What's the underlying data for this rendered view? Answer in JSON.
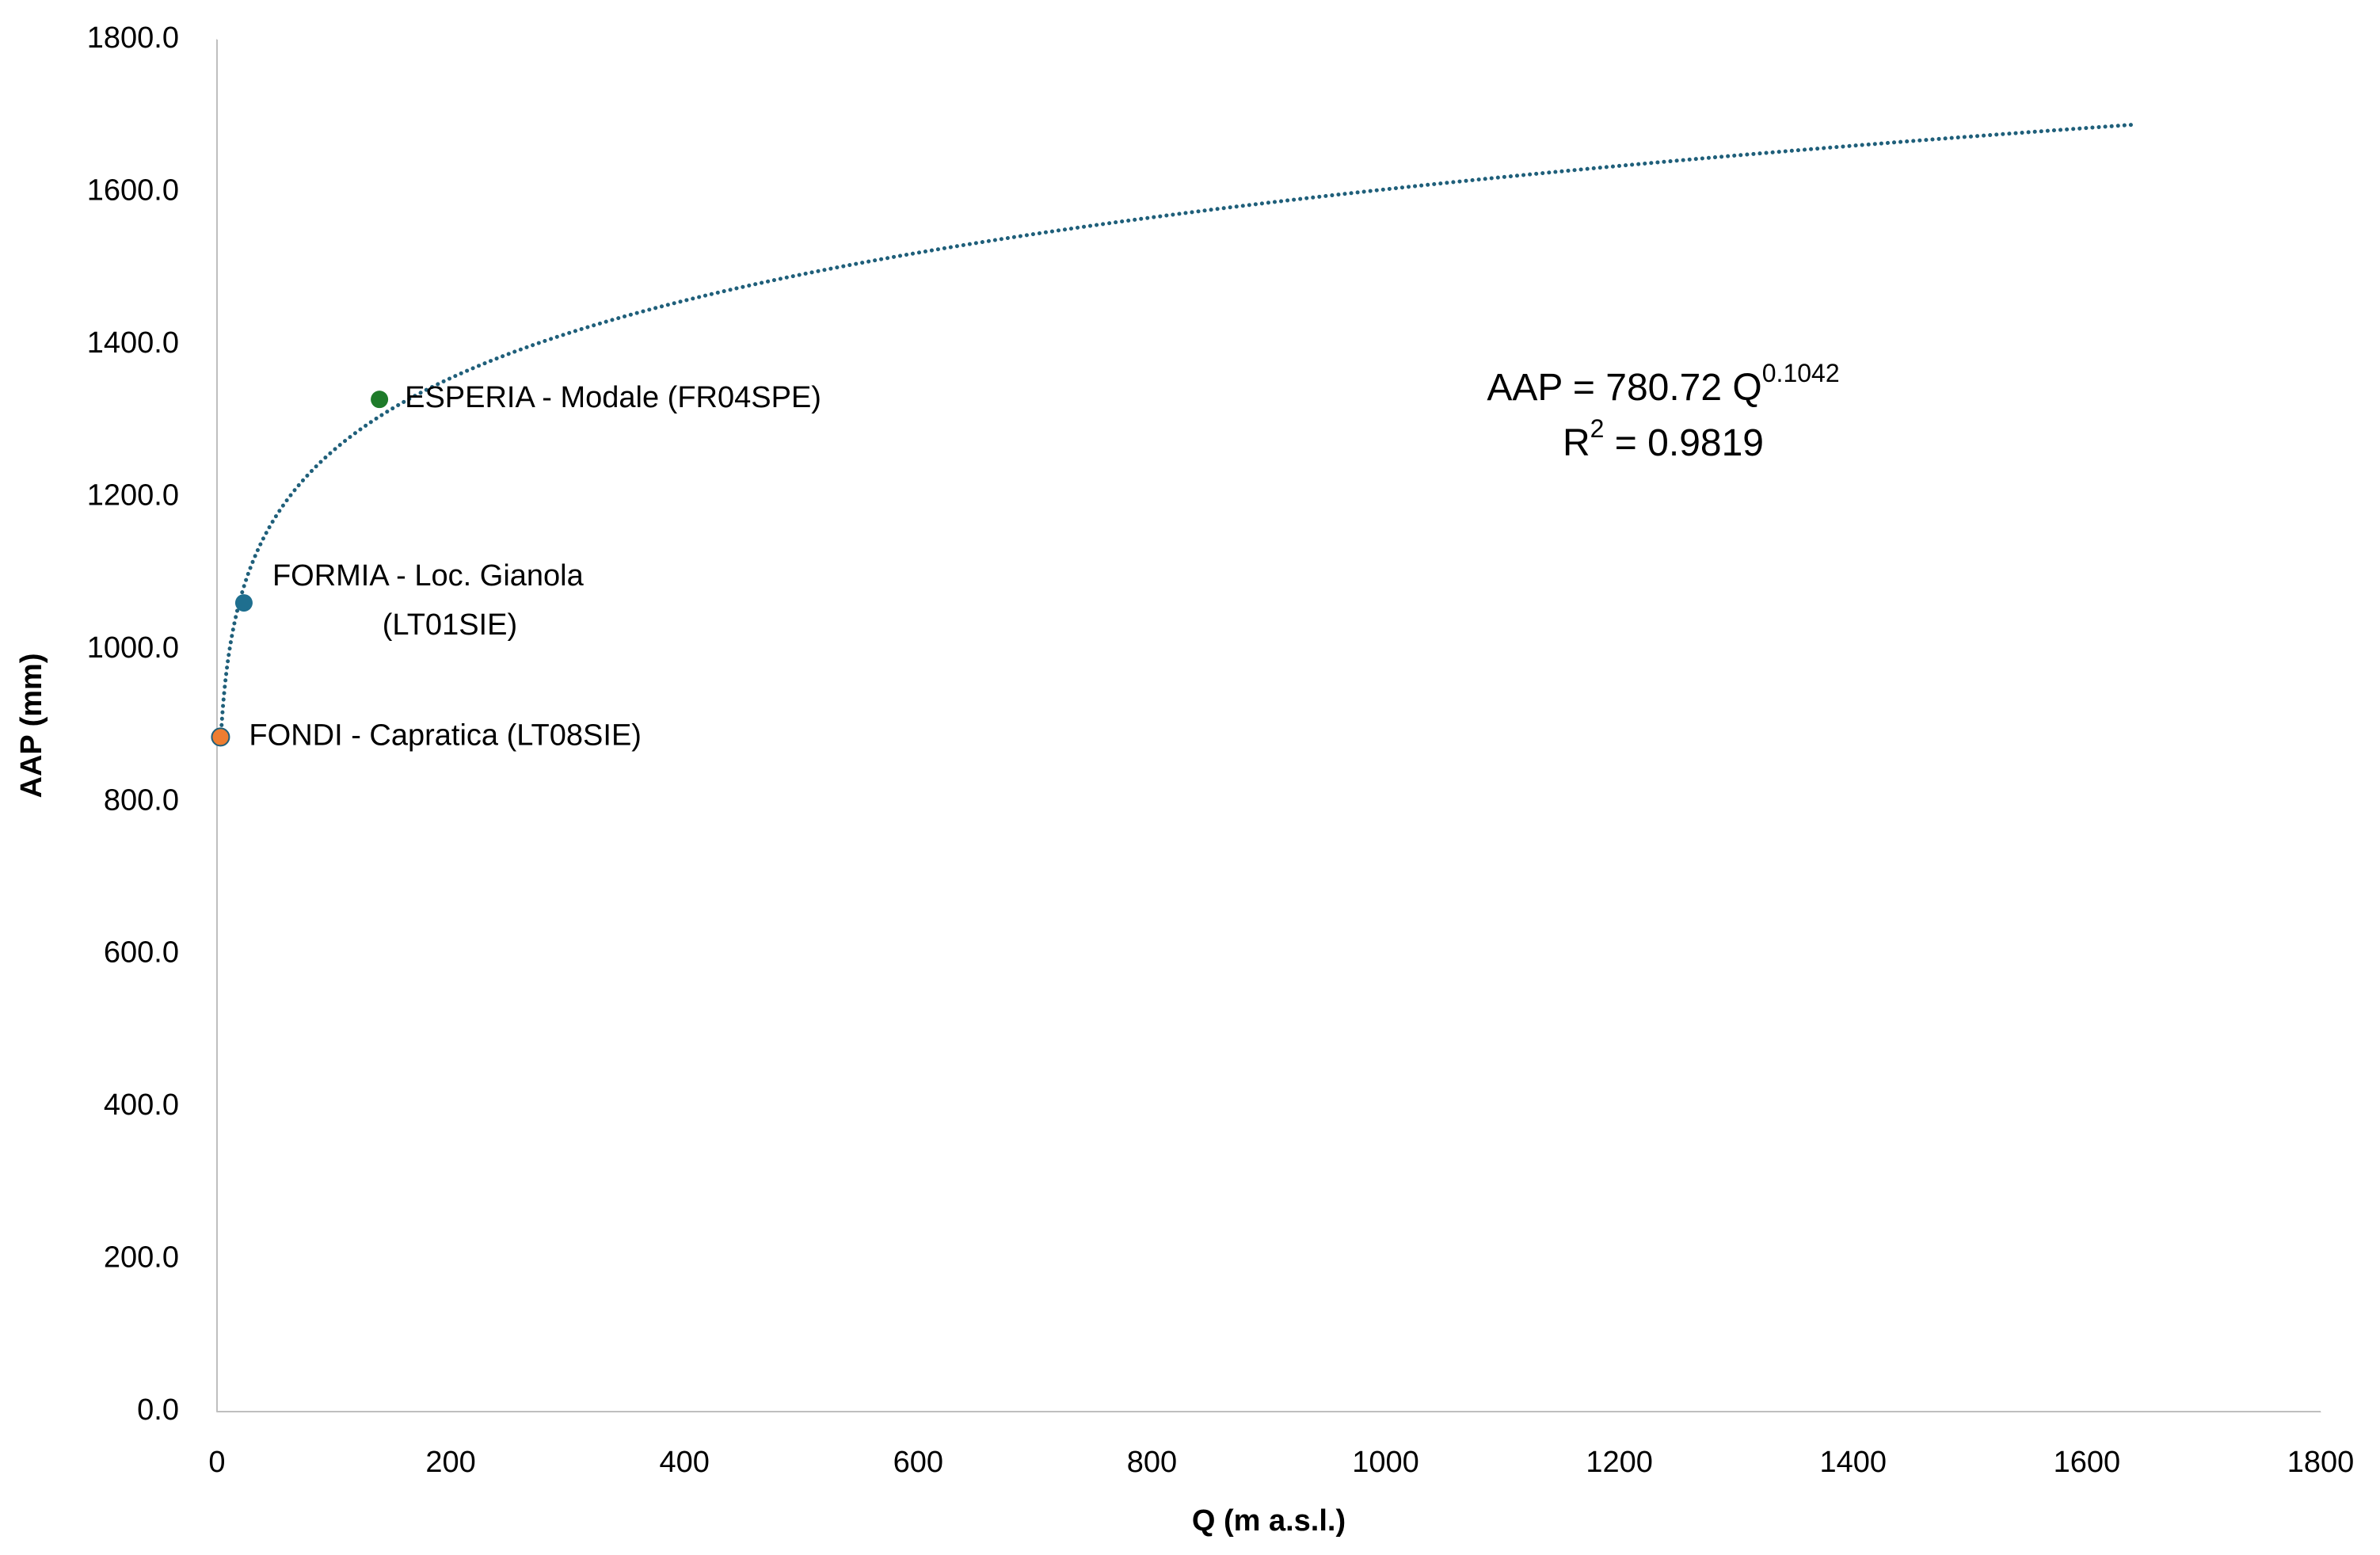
{
  "chart_data": {
    "type": "scatter",
    "x_label": "Q (m a.s.l.)",
    "y_label": "AAP (mm)",
    "xlim": [
      0,
      1800
    ],
    "xticks": [
      0,
      200,
      400,
      600,
      800,
      1000,
      1200,
      1400,
      1600,
      1800
    ],
    "ylim": [
      0,
      1800
    ],
    "yticks": [
      {
        "value": 0,
        "label": "0.0"
      },
      {
        "value": 200,
        "label": "200.0"
      },
      {
        "value": 400,
        "label": "400.0"
      },
      {
        "value": 600,
        "label": "600.0"
      },
      {
        "value": 800,
        "label": "800.0"
      },
      {
        "value": 1000,
        "label": "1000.0"
      },
      {
        "value": 1200,
        "label": "1200.0"
      },
      {
        "value": 1400,
        "label": "1400.0"
      },
      {
        "value": 1600,
        "label": "1600.0"
      },
      {
        "value": 1800,
        "label": "1800.0"
      }
    ],
    "grid": false,
    "series": [
      {
        "label": [
          "FONDI - Capratica (LT08SIE)"
        ],
        "color": "#ed7d31",
        "x": [
          3
        ],
        "values": [
          885
        ]
      },
      {
        "label": [
          "FORMIA - Loc. Gianola",
          "(LT01SIE)"
        ],
        "color": "#1f6f8f",
        "x": [
          23
        ],
        "values": [
          1061
        ]
      },
      {
        "label": [
          "ESPERIA - Modale (FR04SPE)"
        ],
        "color": "#1e7b2a",
        "x": [
          139
        ],
        "values": [
          1328
        ]
      }
    ],
    "trendline": {
      "kind": "power",
      "coefficient": 780.72,
      "exponent": 0.1042,
      "x_range": [
        3,
        1640
      ],
      "color": "#1f5f7a",
      "equation": {
        "text": "AAP = 780.72 Q",
        "superscript": "0.1042"
      },
      "r_squared": {
        "text": "R",
        "superscript": "2",
        "rest": " = 0.9819"
      }
    }
  }
}
